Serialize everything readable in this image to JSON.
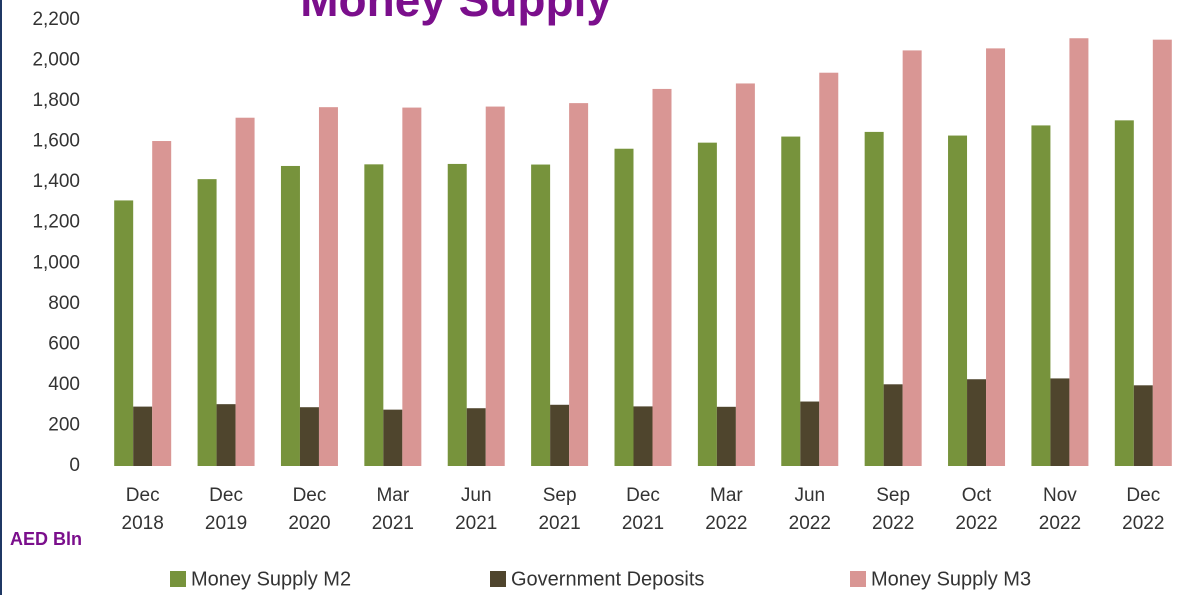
{
  "chart_data": {
    "type": "bar",
    "title": "Money Supply",
    "y_unit": "AED Bln",
    "categories": [
      "Dec 2018",
      "Dec 2019",
      "Dec 2020",
      "Mar 2021",
      "Jun 2021",
      "Sep 2021",
      "Dec 2021",
      "Mar 2022",
      "Jun 2022",
      "Sep 2022",
      "Oct 2022",
      "Nov 2022",
      "Dec 2022"
    ],
    "series": [
      {
        "name": "Money Supply M2",
        "color": "#77933c",
        "values": [
          1310,
          1415,
          1480,
          1488,
          1490,
          1487,
          1565,
          1595,
          1625,
          1648,
          1630,
          1680,
          1705
        ]
      },
      {
        "name": "Government Deposits",
        "color": "#4f452d",
        "values": [
          293,
          305,
          290,
          278,
          285,
          302,
          294,
          292,
          318,
          403,
          428,
          432,
          398
        ]
      },
      {
        "name": "Money Supply M3",
        "color": "#d99694",
        "values": [
          1603,
          1718,
          1770,
          1768,
          1773,
          1790,
          1860,
          1887,
          1940,
          2050,
          2060,
          2110,
          2103
        ]
      }
    ],
    "ylim": [
      0,
      2200
    ],
    "yticks": [
      0,
      200,
      400,
      600,
      800,
      {
        "value": 1000,
        "label": "1,000"
      },
      {
        "value": 1200,
        "label": "1,200"
      },
      {
        "value": 1400,
        "label": "1,400"
      },
      {
        "value": 1600,
        "label": "1,600"
      },
      {
        "value": 1800,
        "label": "1,800"
      },
      {
        "value": 2000,
        "label": "2,000"
      },
      {
        "value": 2200,
        "label": "2,200"
      }
    ],
    "grid": false,
    "legend": "bottom"
  }
}
